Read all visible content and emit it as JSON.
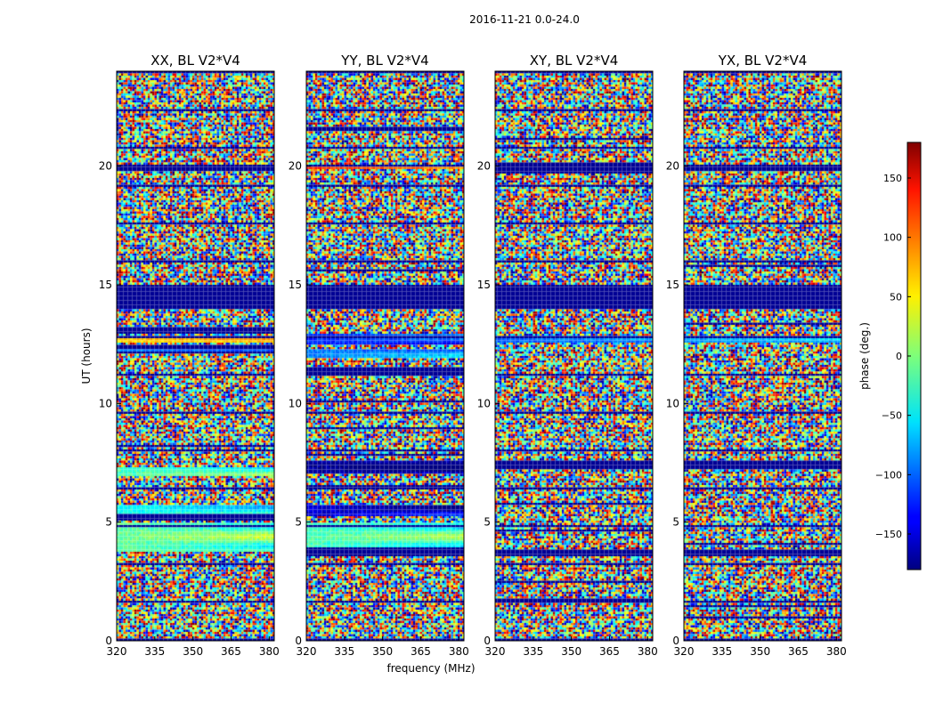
{
  "figure": {
    "suptitle": "2016-11-21 0.0-24.0"
  },
  "chart_data": {
    "type": "heatmap",
    "xlabel": "frequency (MHz)",
    "ylabel": "UT (hours)",
    "xlim": [
      320,
      382
    ],
    "ylim": [
      0,
      24
    ],
    "xticks": [
      320,
      335,
      350,
      365,
      380
    ],
    "yticks": [
      0,
      5,
      10,
      15,
      20
    ],
    "colorbar": {
      "label": "phase (deg.)",
      "range": [
        -180,
        180
      ],
      "ticks": [
        -150,
        -100,
        -50,
        0,
        50,
        100,
        150
      ],
      "tick_labels": [
        "−150",
        "−100",
        "−50",
        "0",
        "50",
        "100",
        "150"
      ],
      "colormap": "jet"
    },
    "panels": [
      {
        "title": "XX, BL V2*V4",
        "blocked_bands": [
          [
            14.0,
            15.0
          ],
          [
            13.0,
            13.3
          ],
          [
            5.2,
            5.4
          ],
          [
            19.8,
            20.1
          ]
        ],
        "coherent_bands": [
          [
            12.6,
            12.9,
            60
          ],
          [
            12.2,
            12.4,
            -90
          ],
          [
            7.0,
            7.4,
            -20
          ],
          [
            3.8,
            5.0,
            -10
          ],
          [
            5.4,
            5.8,
            -40
          ]
        ]
      },
      {
        "title": "YY, BL V2*V4",
        "blocked_bands": [
          [
            14.0,
            15.0
          ],
          [
            11.2,
            11.6
          ],
          [
            3.6,
            4.0
          ]
        ],
        "coherent_bands": [
          [
            19.9,
            20.1,
            120
          ],
          [
            12.5,
            13.0,
            -120
          ],
          [
            12.0,
            12.3,
            -90
          ],
          [
            7.1,
            7.6,
            -170
          ],
          [
            5.3,
            5.8,
            -150
          ],
          [
            4.0,
            5.0,
            -20
          ]
        ]
      },
      {
        "title": "XY, BL V2*V4",
        "blocked_bands": [
          [
            14.0,
            15.0
          ],
          [
            19.8,
            20.2
          ],
          [
            7.3,
            7.6
          ],
          [
            3.6,
            3.9
          ]
        ],
        "coherent_bands": [
          [
            12.6,
            12.9,
            -100
          ]
        ]
      },
      {
        "title": "YX, BL V2*V4",
        "blocked_bands": [
          [
            14.0,
            15.0
          ],
          [
            19.8,
            20.1
          ],
          [
            7.3,
            7.6
          ],
          [
            3.6,
            3.9
          ]
        ],
        "coherent_bands": [
          [
            12.6,
            12.9,
            -80
          ]
        ]
      }
    ]
  }
}
